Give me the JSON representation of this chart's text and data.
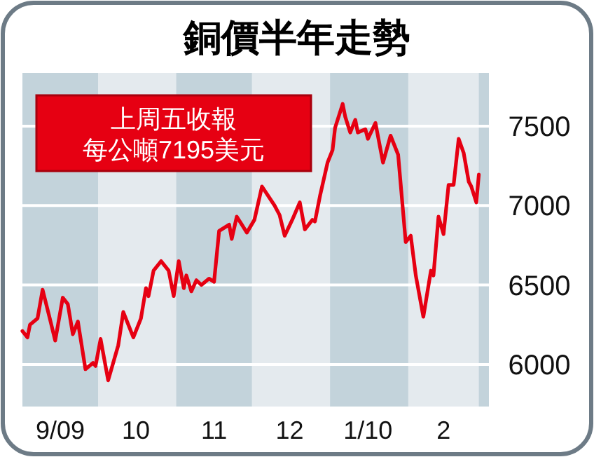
{
  "chart_data": {
    "type": "line",
    "title": "銅價半年走勢",
    "annotations": [
      "上周五收報",
      "每公噸7195美元"
    ],
    "x": [
      "2009-09-01",
      "2009-09-03",
      "2009-09-04",
      "2009-09-07",
      "2009-09-09",
      "2009-09-12",
      "2009-09-14",
      "2009-09-17",
      "2009-09-19",
      "2009-09-21",
      "2009-09-23",
      "2009-09-26",
      "2009-09-29",
      "2009-09-30",
      "2009-10-02",
      "2009-10-05",
      "2009-10-09",
      "2009-10-11",
      "2009-10-13",
      "2009-10-15",
      "2009-10-18",
      "2009-10-20",
      "2009-10-21",
      "2009-10-23",
      "2009-10-26",
      "2009-10-29",
      "2009-10-31",
      "2009-11-02",
      "2009-11-04",
      "2009-11-05",
      "2009-11-07",
      "2009-11-09",
      "2009-11-11",
      "2009-11-14",
      "2009-11-16",
      "2009-11-18",
      "2009-11-22",
      "2009-11-23",
      "2009-11-25",
      "2009-11-27",
      "2009-11-29",
      "2009-12-02",
      "2009-12-05",
      "2009-12-10",
      "2009-12-12",
      "2009-12-14",
      "2009-12-17",
      "2009-12-20",
      "2009-12-22",
      "2009-12-25",
      "2009-12-26",
      "2009-12-28",
      "2009-12-31",
      "2010-01-02",
      "2010-01-03",
      "2010-01-06",
      "2010-01-07",
      "2010-01-09",
      "2010-01-11",
      "2010-01-12",
      "2010-01-15",
      "2010-01-16",
      "2010-01-19",
      "2010-01-22",
      "2010-01-25",
      "2010-01-28",
      "2010-01-31",
      "2010-02-02",
      "2010-02-04",
      "2010-02-07",
      "2010-02-10",
      "2010-02-11",
      "2010-02-13",
      "2010-02-15",
      "2010-02-17",
      "2010-02-19",
      "2010-02-21",
      "2010-02-23",
      "2010-02-25",
      "2010-02-26",
      "2010-02-28",
      "2010-03-01"
    ],
    "series": [
      {
        "color": "#e60012",
        "values": [
          6210,
          6170,
          6250,
          6290,
          6470,
          6280,
          6150,
          6420,
          6380,
          6190,
          6270,
          5970,
          6010,
          5990,
          6160,
          5900,
          6120,
          6330,
          6250,
          6170,
          6290,
          6480,
          6430,
          6590,
          6650,
          6590,
          6430,
          6650,
          6480,
          6560,
          6460,
          6530,
          6500,
          6540,
          6520,
          6840,
          6880,
          6790,
          6930,
          6880,
          6830,
          6910,
          7120,
          7000,
          6940,
          6810,
          6910,
          7020,
          6850,
          6910,
          6900,
          7060,
          7270,
          7350,
          7490,
          7640,
          7560,
          7460,
          7540,
          7460,
          7480,
          7420,
          7520,
          7270,
          7440,
          7320,
          6770,
          6810,
          6560,
          6300,
          6590,
          6560,
          6930,
          6820,
          7130,
          7130,
          7420,
          7330,
          7150,
          7120,
          7020,
          7195
        ]
      }
    ],
    "xlim": [
      "2009-09-01",
      "2010-03-05"
    ],
    "xticks": [
      {
        "value": "2009-09-16",
        "label": "9/09"
      },
      {
        "value": "2009-10-16",
        "label": "10"
      },
      {
        "value": "2009-11-16",
        "label": "11"
      },
      {
        "value": "2009-12-16",
        "label": "12"
      },
      {
        "value": "2010-01-16",
        "label": "1/10"
      },
      {
        "value": "2010-02-15",
        "label": "2"
      }
    ],
    "ylim": [
      5735,
      7835
    ],
    "yticks": [
      6000,
      6500,
      7000,
      7500
    ],
    "grid": "y",
    "marker": "none",
    "line_style": "solid",
    "bands": [
      {
        "axis": "x",
        "from": "2009-09-01",
        "to": "2009-10-01",
        "color": "#c3d3db"
      },
      {
        "axis": "x",
        "from": "2009-11-01",
        "to": "2009-12-01",
        "color": "#c3d3db"
      },
      {
        "axis": "x",
        "from": "2010-01-01",
        "to": "2010-02-01",
        "color": "#c3d3db"
      },
      {
        "axis": "x",
        "from": "2010-03-01",
        "to": "2010-03-05",
        "color": "#c3d3db"
      }
    ]
  }
}
